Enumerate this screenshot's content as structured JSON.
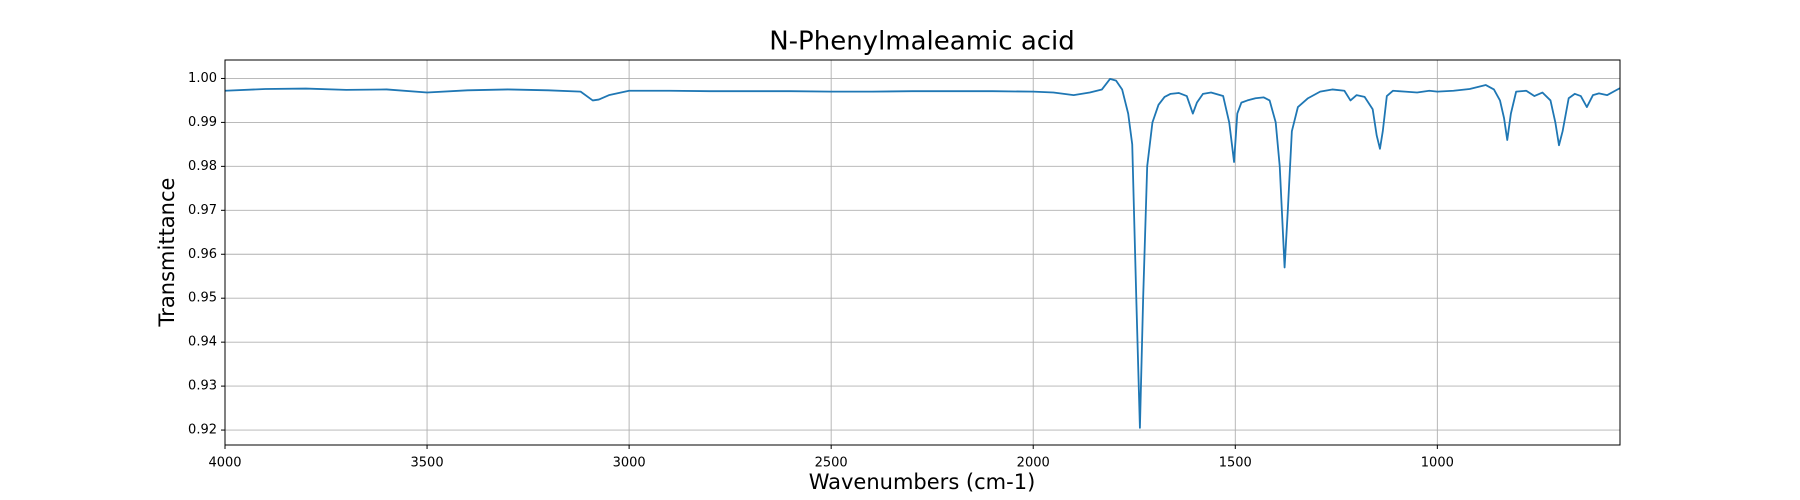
{
  "chart_data": {
    "type": "line",
    "title": "N-Phenylmaleamic acid",
    "x_label": "Wavenumbers (cm-1)",
    "y_label": "Transmittance",
    "xlim": [
      4000,
      548
    ],
    "ylim": [
      0.9166,
      1.0042
    ],
    "xticks": [
      4000,
      3500,
      3000,
      2500,
      2000,
      1500,
      1000
    ],
    "yticks": [
      0.92,
      0.93,
      0.94,
      0.95,
      0.96,
      0.97,
      0.98,
      0.99,
      {
        "value": 1,
        "label": "1.00"
      }
    ],
    "grid": true,
    "x": [
      4000,
      3900,
      3800,
      3700,
      3600,
      3500,
      3400,
      3300,
      3200,
      3120,
      3090,
      3075,
      3050,
      3000,
      2900,
      2800,
      2700,
      2600,
      2500,
      2400,
      2300,
      2200,
      2100,
      2000,
      1950,
      1900,
      1860,
      1830,
      1810,
      1795,
      1780,
      1765,
      1755,
      1745,
      1736,
      1728,
      1718,
      1705,
      1690,
      1675,
      1660,
      1640,
      1620,
      1605,
      1595,
      1580,
      1560,
      1530,
      1515,
      1503,
      1495,
      1485,
      1470,
      1450,
      1430,
      1415,
      1400,
      1390,
      1378,
      1370,
      1360,
      1345,
      1320,
      1290,
      1260,
      1230,
      1215,
      1200,
      1180,
      1160,
      1150,
      1142,
      1135,
      1125,
      1110,
      1080,
      1050,
      1020,
      1000,
      960,
      920,
      880,
      860,
      845,
      835,
      827,
      818,
      805,
      780,
      760,
      740,
      720,
      708,
      699,
      690,
      675,
      660,
      645,
      630,
      615,
      600,
      580,
      560,
      548
    ],
    "series": [
      {
        "name": "N-Phenylmaleamic acid",
        "color": "#1f77b4",
        "values": [
          0.9972,
          0.9976,
          0.9977,
          0.9974,
          0.9975,
          0.9968,
          0.9973,
          0.9975,
          0.9973,
          0.997,
          0.995,
          0.9952,
          0.9962,
          0.9972,
          0.9972,
          0.9971,
          0.9971,
          0.9971,
          0.997,
          0.997,
          0.9971,
          0.9971,
          0.9971,
          0.997,
          0.9968,
          0.9962,
          0.9968,
          0.9975,
          0.9999,
          0.9995,
          0.9975,
          0.992,
          0.985,
          0.95,
          0.9205,
          0.95,
          0.98,
          0.99,
          0.994,
          0.9958,
          0.9965,
          0.9967,
          0.996,
          0.992,
          0.9945,
          0.9965,
          0.9968,
          0.996,
          0.99,
          0.981,
          0.992,
          0.9945,
          0.995,
          0.9955,
          0.9957,
          0.995,
          0.99,
          0.98,
          0.957,
          0.97,
          0.988,
          0.9935,
          0.9955,
          0.997,
          0.9975,
          0.9972,
          0.995,
          0.9962,
          0.9958,
          0.993,
          0.987,
          0.984,
          0.988,
          0.996,
          0.9972,
          0.997,
          0.9968,
          0.9972,
          0.997,
          0.9972,
          0.9976,
          0.9985,
          0.9975,
          0.995,
          0.991,
          0.986,
          0.992,
          0.997,
          0.9972,
          0.996,
          0.9968,
          0.995,
          0.99,
          0.9848,
          0.988,
          0.9955,
          0.9965,
          0.996,
          0.9935,
          0.9962,
          0.9966,
          0.9962,
          0.9972,
          0.9978
        ]
      }
    ]
  }
}
